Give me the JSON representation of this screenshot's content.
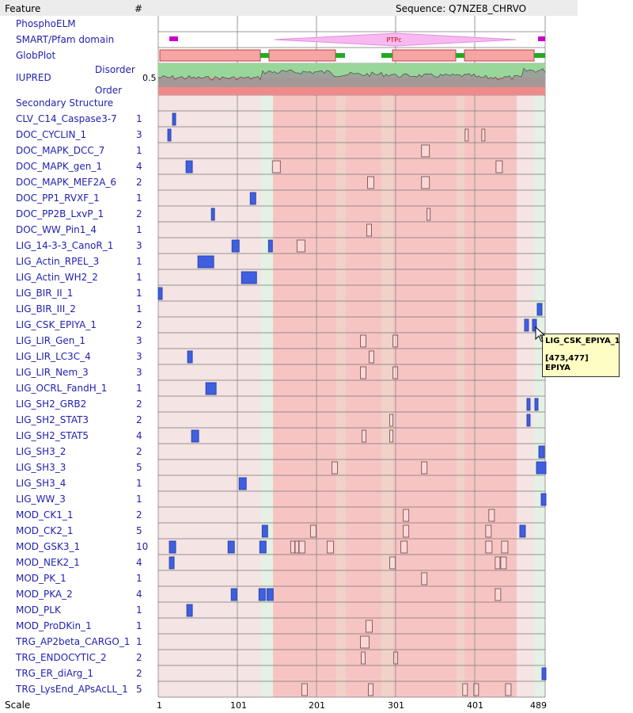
{
  "header": {
    "feature_label": "Feature",
    "count_label": "#",
    "sequence_label": "Sequence: Q7NZE8_CHRVO"
  },
  "colors": {
    "motif_fill": "#3f5fe0",
    "open_box": "#ffffff",
    "disorder_band": "#99d699",
    "order_band": "#f08a8a",
    "globplot_box": "#f6a5a5",
    "globplot_green": "#22aa22",
    "smart_domain": "#f7b9f0",
    "smart_small": "#cc00cc",
    "bg_pale": "#f5e4e4",
    "bg_red": "#f7c4c4",
    "bg_green": "#e4f1e4",
    "bg_tan": "#f0d2c8"
  },
  "tracks": {
    "phosphoelm": "PhosphoELM",
    "smart": "SMART/Pfam domain",
    "smart_domain_label": "PTPc",
    "globplot": "GlobPlot",
    "iupred": "IUPRED",
    "disorder": "Disorder",
    "order": "Order",
    "iupred_threshold": "0.5",
    "secondary": "Secondary Structure"
  },
  "features": [
    {
      "name": "CLV_C14_Caspase3-7",
      "count": "1"
    },
    {
      "name": "DOC_CYCLIN_1",
      "count": "3"
    },
    {
      "name": "DOC_MAPK_DCC_7",
      "count": "1"
    },
    {
      "name": "DOC_MAPK_gen_1",
      "count": "4"
    },
    {
      "name": "DOC_MAPK_MEF2A_6",
      "count": "2"
    },
    {
      "name": "DOC_PP1_RVXF_1",
      "count": "1"
    },
    {
      "name": "DOC_PP2B_LxvP_1",
      "count": "2"
    },
    {
      "name": "DOC_WW_Pin1_4",
      "count": "1"
    },
    {
      "name": "LIG_14-3-3_CanoR_1",
      "count": "3"
    },
    {
      "name": "LIG_Actin_RPEL_3",
      "count": "1"
    },
    {
      "name": "LIG_Actin_WH2_2",
      "count": "1"
    },
    {
      "name": "LIG_BIR_II_1",
      "count": "1"
    },
    {
      "name": "LIG_BIR_III_2",
      "count": "1"
    },
    {
      "name": "LIG_CSK_EPIYA_1",
      "count": "2"
    },
    {
      "name": "LIG_LIR_Gen_1",
      "count": "3"
    },
    {
      "name": "LIG_LIR_LC3C_4",
      "count": "3"
    },
    {
      "name": "LIG_LIR_Nem_3",
      "count": "3"
    },
    {
      "name": "LIG_OCRL_FandH_1",
      "count": "1"
    },
    {
      "name": "LIG_SH2_GRB2",
      "count": "2"
    },
    {
      "name": "LIG_SH2_STAT3",
      "count": "2"
    },
    {
      "name": "LIG_SH2_STAT5",
      "count": "4"
    },
    {
      "name": "LIG_SH3_2",
      "count": "2"
    },
    {
      "name": "LIG_SH3_3",
      "count": "5"
    },
    {
      "name": "LIG_SH3_4",
      "count": "1"
    },
    {
      "name": "LIG_WW_3",
      "count": "1"
    },
    {
      "name": "MOD_CK1_1",
      "count": "2"
    },
    {
      "name": "MOD_CK2_1",
      "count": "5"
    },
    {
      "name": "MOD_GSK3_1",
      "count": "10"
    },
    {
      "name": "MOD_NEK2_1",
      "count": "4"
    },
    {
      "name": "MOD_PK_1",
      "count": "1"
    },
    {
      "name": "MOD_PKA_2",
      "count": "4"
    },
    {
      "name": "MOD_PLK",
      "count": "1"
    },
    {
      "name": "MOD_ProDKin_1",
      "count": "1"
    },
    {
      "name": "TRG_AP2beta_CARGO_1",
      "count": "1"
    },
    {
      "name": "TRG_ENDOCYTIC_2",
      "count": "2"
    },
    {
      "name": "TRG_ER_diArg_1",
      "count": "2"
    },
    {
      "name": "TRG_LysEnd_APsAcLL_1",
      "count": "5"
    }
  ],
  "scale": {
    "label": "Scale",
    "ticks": [
      "1",
      "101",
      "201",
      "301",
      "401",
      "489"
    ]
  },
  "tooltip": {
    "title": "LIG_CSK_EPIYA_1",
    "range": "[473,477]",
    "motif": "EPIYA"
  }
}
